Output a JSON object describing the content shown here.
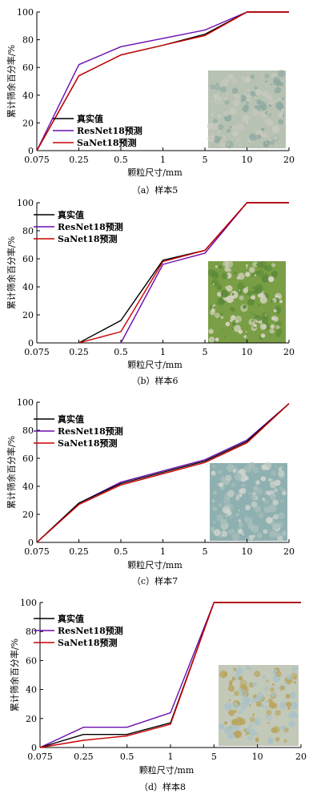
{
  "chart_data": [
    {
      "type": "line",
      "caption": "（a）样本5",
      "x": [
        "0.075",
        "0.25",
        "0.5",
        "1",
        "5",
        "10",
        "20"
      ],
      "ylim": [
        0,
        100
      ],
      "yticks": [
        0,
        20,
        40,
        60,
        80,
        100
      ],
      "xlabel": "颗粒尺寸/mm",
      "ylabel": "累计筛余百分率/%",
      "legend_position": "middle-left",
      "series": [
        {
          "name": "真实值",
          "color": "#000000",
          "values": [
            0,
            54,
            69,
            76,
            84,
            100,
            100
          ]
        },
        {
          "name": "ResNet18预测",
          "color": "#6a0dad",
          "values": [
            0,
            62,
            75,
            81,
            87,
            100,
            100
          ]
        },
        {
          "name": "SaNet18预测",
          "color": "#cc0000",
          "values": [
            0,
            54,
            69,
            76,
            83,
            100,
            100
          ]
        }
      ]
    },
    {
      "type": "line",
      "caption": "（b）样本6",
      "x": [
        "0.075",
        "0.25",
        "0.5",
        "1",
        "5",
        "10",
        "20"
      ],
      "ylim": [
        0,
        100
      ],
      "yticks": [
        0,
        20,
        40,
        60,
        80,
        100
      ],
      "xlabel": "颗粒尺寸/mm",
      "ylabel": "累计筛余百分率/%",
      "legend_position": "top-left",
      "series": [
        {
          "name": "真实值",
          "color": "#000000",
          "values": [
            null,
            0,
            16,
            59,
            66,
            100,
            100
          ]
        },
        {
          "name": "ResNet18预测",
          "color": "#6a0dad",
          "values": [
            null,
            null,
            0,
            56,
            64,
            100,
            100
          ]
        },
        {
          "name": "SaNet18预测",
          "color": "#cc0000",
          "values": [
            null,
            0,
            8,
            58,
            66,
            100,
            100
          ]
        }
      ]
    },
    {
      "type": "line",
      "caption": "（c）样本7",
      "x": [
        "0.075",
        "0.25",
        "0.5",
        "1",
        "5",
        "10",
        "20"
      ],
      "ylim": [
        0,
        100
      ],
      "yticks": [
        0,
        20,
        40,
        60,
        80,
        100
      ],
      "xlabel": "颗粒尺寸/mm",
      "ylabel": "累计筛余百分率/%",
      "legend_position": "top-left",
      "series": [
        {
          "name": "真实值",
          "color": "#000000",
          "values": [
            0,
            28,
            42,
            50,
            58,
            72,
            99
          ]
        },
        {
          "name": "ResNet18预测",
          "color": "#6a0dad",
          "values": [
            0,
            28,
            43,
            51,
            59,
            73,
            99
          ]
        },
        {
          "name": "SaNet18预测",
          "color": "#cc0000",
          "values": [
            0,
            27,
            41,
            49,
            57,
            71,
            99
          ]
        }
      ]
    },
    {
      "type": "line",
      "caption": "（d）样本8",
      "x": [
        "0.075",
        "0.25",
        "0.5",
        "1",
        "5",
        "10",
        "20"
      ],
      "ylim": [
        0,
        100
      ],
      "yticks": [
        0,
        20,
        40,
        60,
        80,
        100
      ],
      "xlabel": "颗粒尺寸/mm",
      "ylabel": "累计筛余百分率/%",
      "legend_position": "top-left",
      "series": [
        {
          "name": "真实值",
          "color": "#000000",
          "values": [
            0,
            9,
            9,
            17,
            100,
            100,
            100
          ]
        },
        {
          "name": "ResNet18预测",
          "color": "#6a0dad",
          "values": [
            0,
            14,
            14,
            24,
            100,
            100,
            100
          ]
        },
        {
          "name": "SaNet18预测",
          "color": "#cc0000",
          "values": [
            0,
            5,
            8,
            16,
            100,
            100,
            100
          ]
        }
      ]
    }
  ]
}
